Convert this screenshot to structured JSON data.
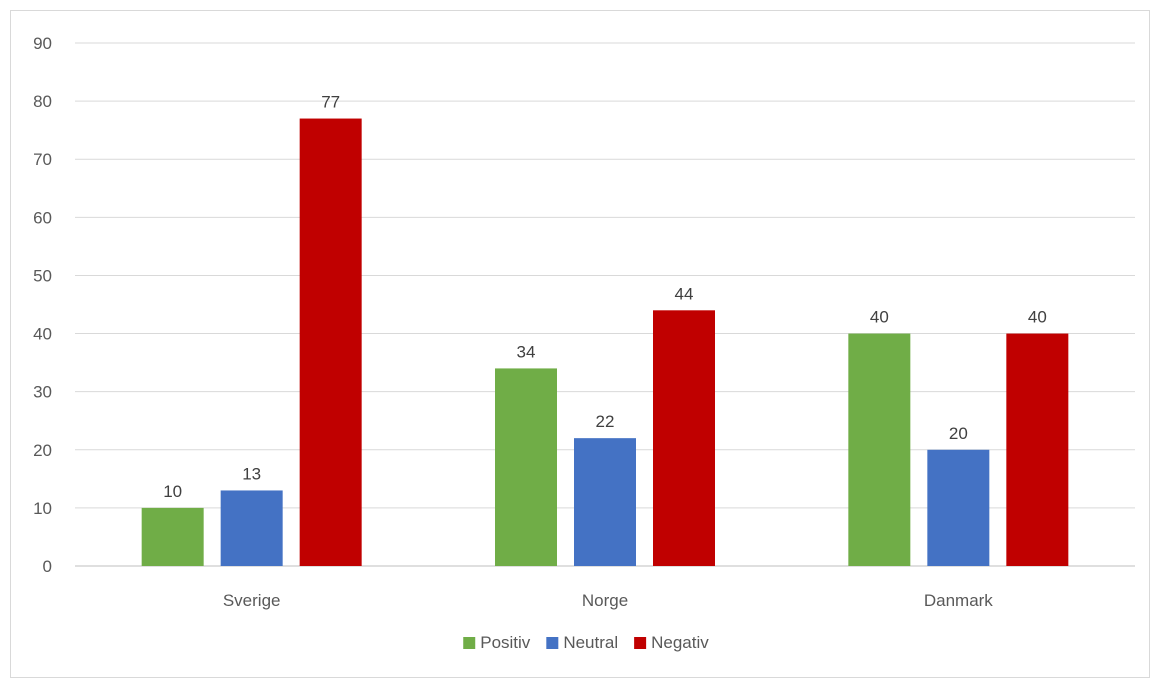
{
  "chart_data": {
    "type": "bar",
    "title": "",
    "xlabel": "",
    "ylabel": "",
    "categories": [
      "Sverige",
      "Norge",
      "Danmark"
    ],
    "series": [
      {
        "name": "Positiv",
        "color": "#70ad47",
        "values": [
          10,
          34,
          40
        ]
      },
      {
        "name": "Neutral",
        "color": "#4472c4",
        "values": [
          13,
          22,
          20
        ]
      },
      {
        "name": "Negativ",
        "color": "#c00000",
        "values": [
          77,
          44,
          40
        ]
      }
    ],
    "ylim": [
      0,
      90
    ],
    "yticks": [
      0,
      10,
      20,
      30,
      40,
      50,
      60,
      70,
      80,
      90
    ],
    "grid": true,
    "data_labels": true,
    "legend": "bottom-center"
  }
}
